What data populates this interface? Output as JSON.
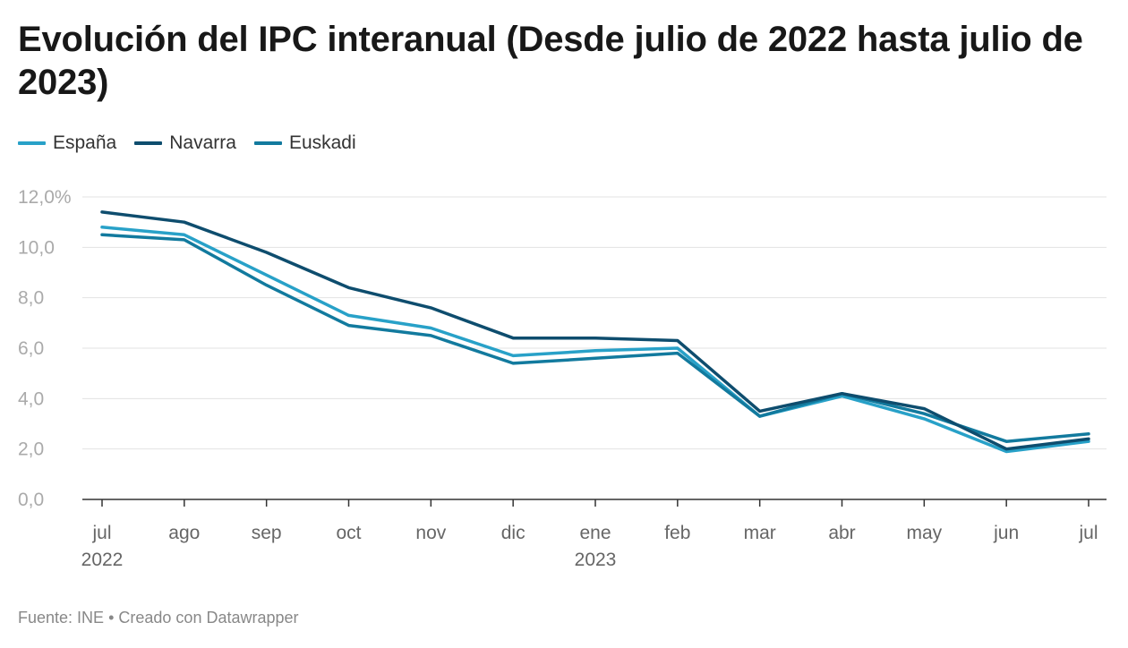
{
  "title": "Evolución del IPC interanual (Desde julio de 2022 hasta julio de 2023)",
  "footer": {
    "source": "Fuente: INE",
    "separator": "•",
    "credit": "Creado con Datawrapper"
  },
  "colors": {
    "espana": "#28a1c8",
    "navarra": "#0e4d6e",
    "euskadi": "#127a9e",
    "grid": "#e3e3e3",
    "axis": "#333333",
    "tick_label": "#aaaaaa",
    "x_label": "#666666"
  },
  "chart_data": {
    "type": "line",
    "title": "Evolución del IPC interanual (Desde julio de 2022 hasta julio de 2023)",
    "xlabel": "",
    "ylabel": "",
    "categories": [
      "jul",
      "ago",
      "sep",
      "oct",
      "nov",
      "dic",
      "ene",
      "feb",
      "mar",
      "abr",
      "may",
      "jun",
      "jul"
    ],
    "year_labels": [
      {
        "index": 0,
        "label": "2022"
      },
      {
        "index": 6,
        "label": "2023"
      }
    ],
    "y_ticks": [
      {
        "value": 0,
        "label": "0,0"
      },
      {
        "value": 2,
        "label": "2,0"
      },
      {
        "value": 4,
        "label": "4,0"
      },
      {
        "value": 6,
        "label": "6,0"
      },
      {
        "value": 8,
        "label": "8,0"
      },
      {
        "value": 10,
        "label": "10,0"
      },
      {
        "value": 12,
        "label": "12,0%"
      }
    ],
    "ylim": [
      0,
      12
    ],
    "grid": true,
    "legend_position": "top-left",
    "series": [
      {
        "name": "España",
        "color_key": "espana",
        "values": [
          10.8,
          10.5,
          8.9,
          7.3,
          6.8,
          5.7,
          5.9,
          6.0,
          3.3,
          4.1,
          3.2,
          1.9,
          2.3
        ]
      },
      {
        "name": "Navarra",
        "color_key": "navarra",
        "values": [
          11.4,
          11.0,
          9.8,
          8.4,
          7.6,
          6.4,
          6.4,
          6.3,
          3.5,
          4.2,
          3.6,
          2.0,
          2.4
        ]
      },
      {
        "name": "Euskadi",
        "color_key": "euskadi",
        "values": [
          10.5,
          10.3,
          8.5,
          6.9,
          6.5,
          5.4,
          5.6,
          5.8,
          3.3,
          4.2,
          3.4,
          2.3,
          2.6
        ]
      }
    ]
  }
}
